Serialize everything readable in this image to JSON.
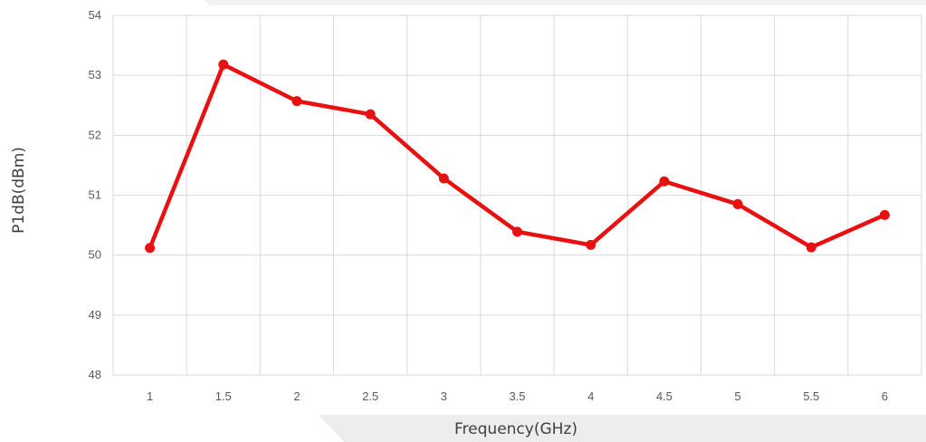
{
  "chart_data": {
    "type": "line",
    "title": "",
    "xlabel": "Frequency(GHz)",
    "ylabel": "P1dB(dBm)",
    "categories": [
      "1",
      "1.5",
      "2",
      "2.5",
      "3",
      "3.5",
      "4",
      "4.5",
      "5",
      "5.5",
      "6"
    ],
    "y_ticks": [
      "48",
      "49",
      "50",
      "51",
      "52",
      "53",
      "54"
    ],
    "ylim": [
      48,
      54
    ],
    "grid": true,
    "legend": "none",
    "series": [
      {
        "values": [
          50.12,
          53.18,
          52.57,
          52.35,
          51.28,
          50.39,
          50.17,
          51.23,
          50.85,
          50.13,
          50.67
        ],
        "color": "#e81010"
      }
    ],
    "colors": {
      "grid": "#d9d9d9",
      "tick_text": "#595959",
      "axis_title": "#404040"
    }
  }
}
